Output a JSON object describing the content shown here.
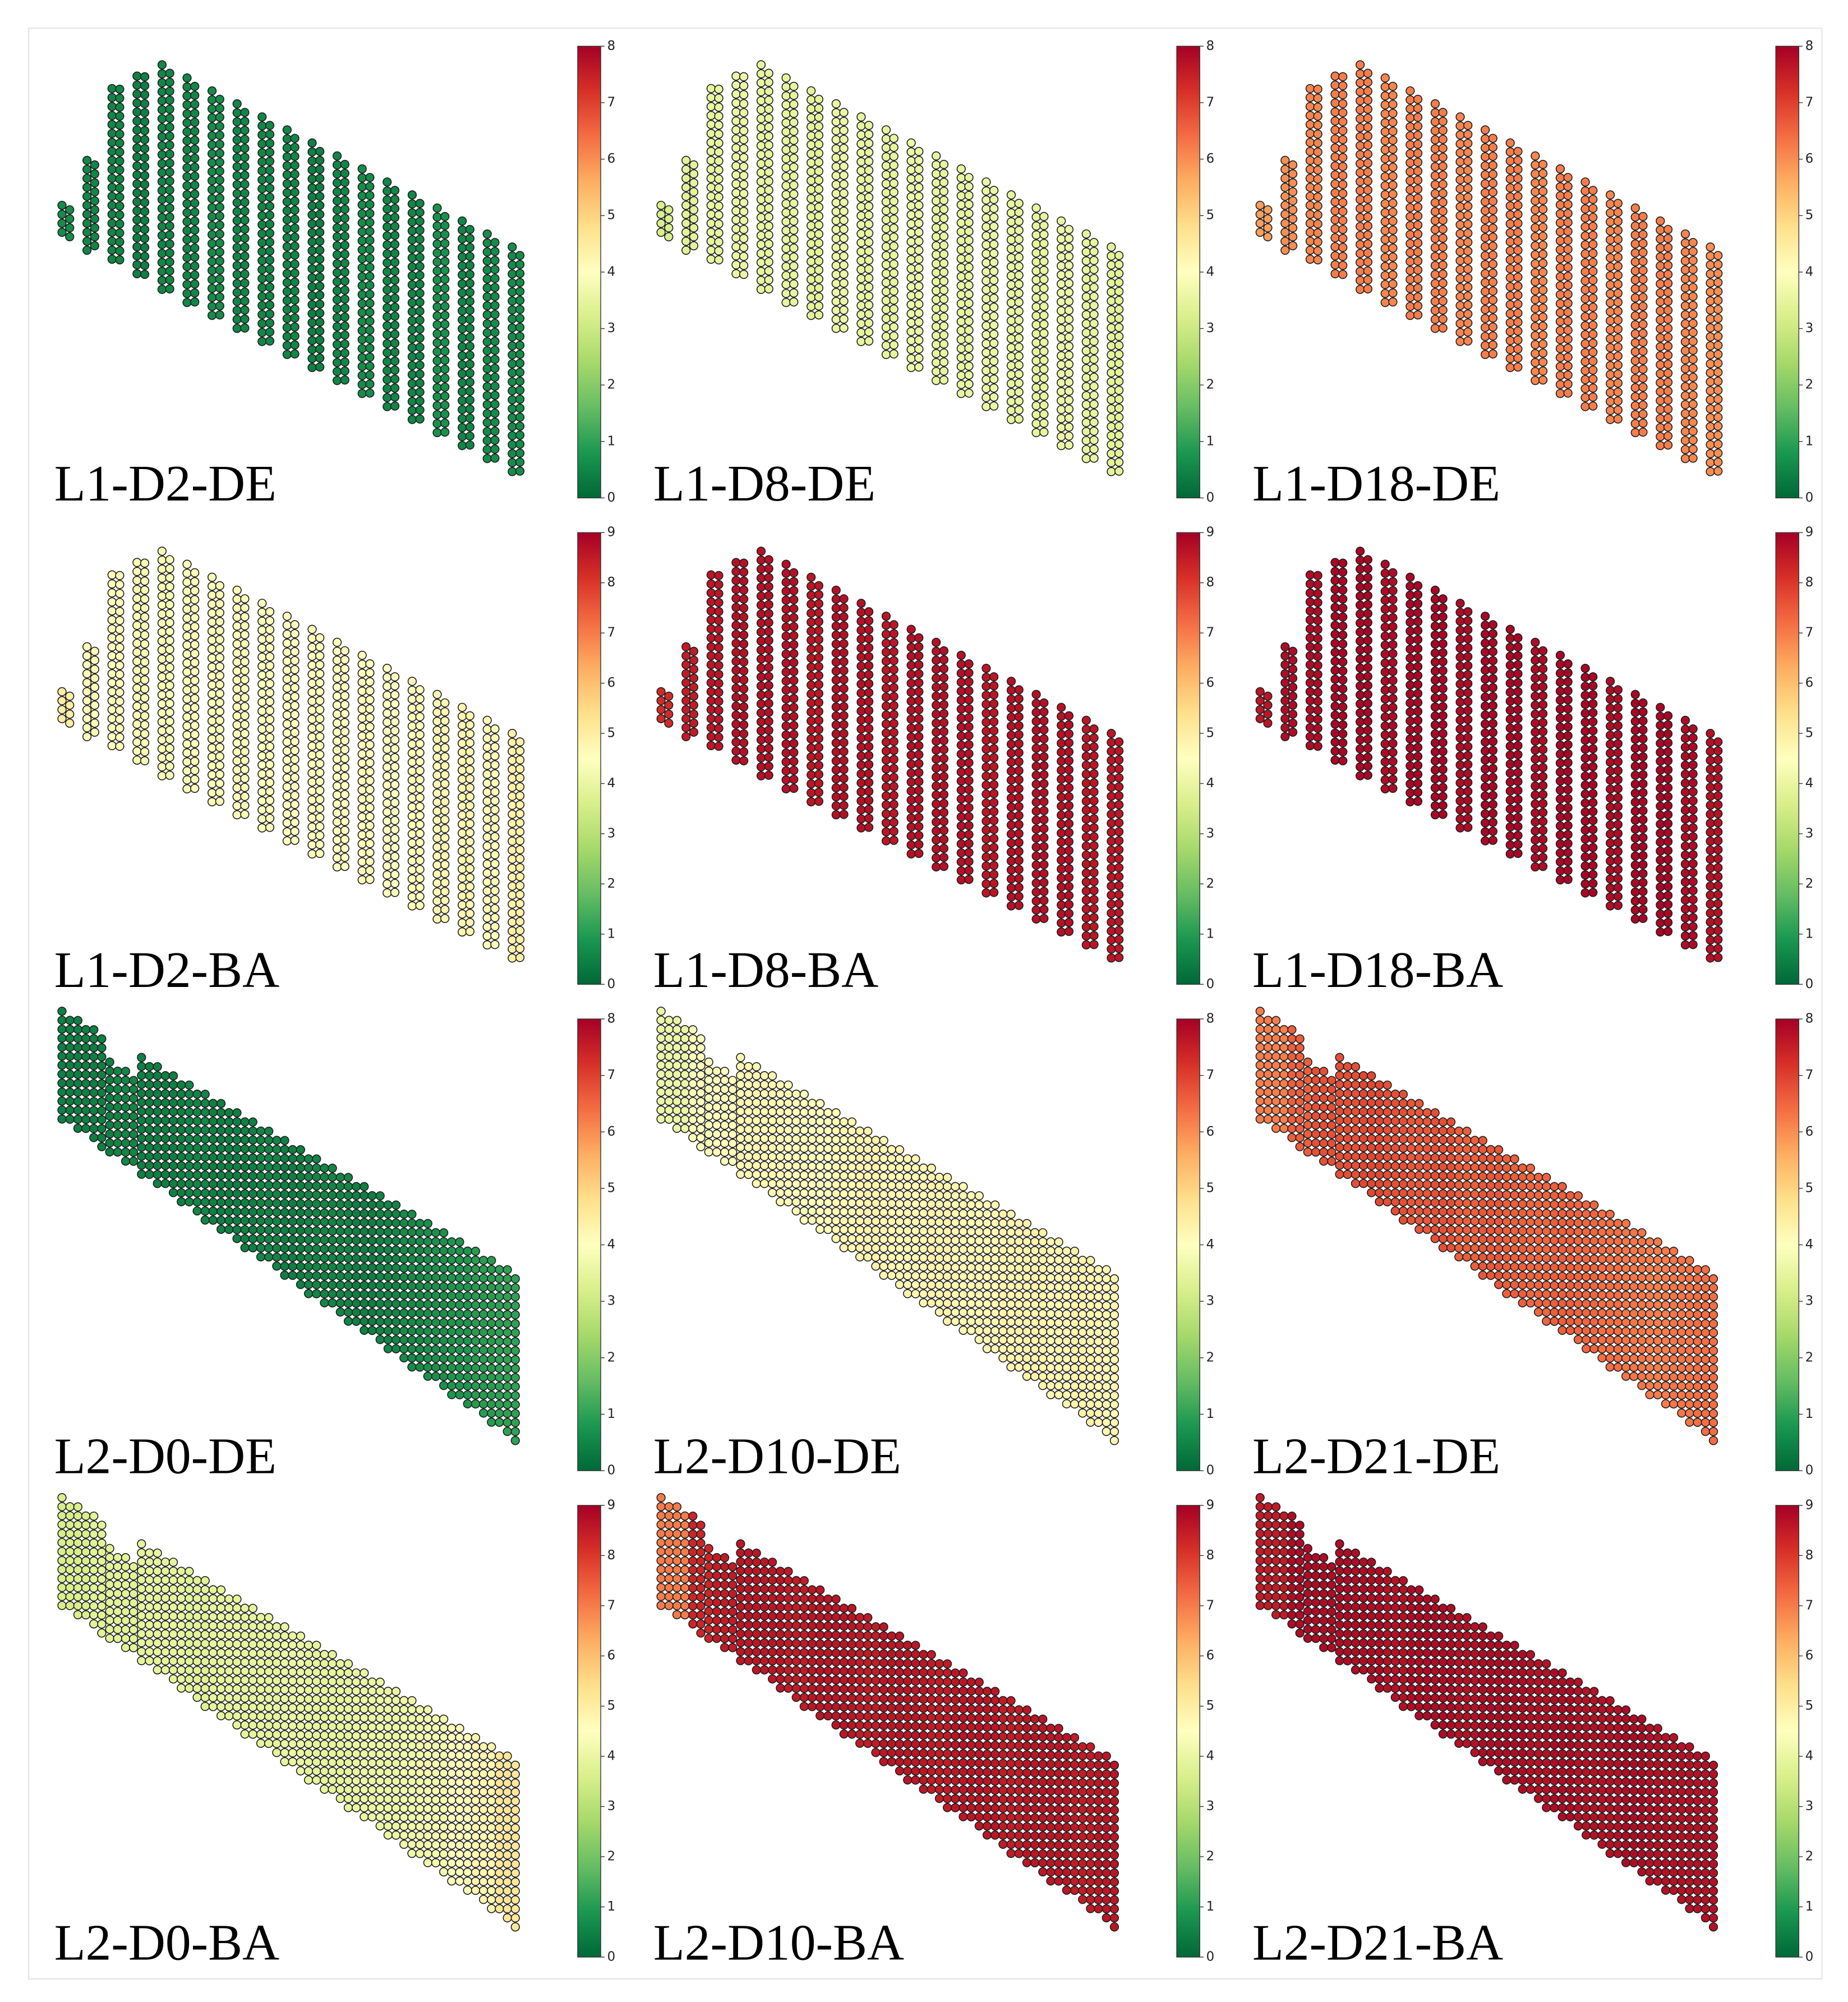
{
  "chart_data": [
    {
      "type": "scatter",
      "title": "L1-D2-DE",
      "clim": [
        0,
        8
      ],
      "cticks": [
        0,
        1,
        2,
        3,
        4,
        5,
        6,
        7,
        8
      ],
      "values": [
        0.6,
        0.5,
        0.5,
        0.4,
        0.5,
        0.5,
        0.6,
        0.5,
        0.5,
        0.5,
        0.4,
        0.5,
        0.6,
        0.5,
        0.5,
        0.7,
        0.5,
        0.6,
        0.6
      ]
    },
    {
      "type": "scatter",
      "title": "L1-D8-DE",
      "clim": [
        0,
        8
      ],
      "cticks": [
        0,
        1,
        2,
        3,
        4,
        5,
        6,
        7,
        8
      ],
      "values": [
        3.2,
        3.4,
        3.5,
        3.6,
        3.5,
        3.5,
        3.4,
        3.6,
        3.5,
        3.5,
        3.6,
        3.5,
        3.5,
        3.6,
        3.5,
        3.5,
        3.6,
        3.5,
        3.4
      ]
    },
    {
      "type": "scatter",
      "title": "L1-D18-DE",
      "clim": [
        0,
        8
      ],
      "cticks": [
        0,
        1,
        2,
        3,
        4,
        5,
        6,
        7,
        8
      ],
      "values": [
        5.8,
        6.0,
        6.1,
        6.2,
        6.2,
        6.1,
        6.2,
        6.2,
        6.1,
        6.2,
        6.2,
        6.1,
        6.2,
        6.2,
        6.1,
        6.2,
        6.2,
        6.1,
        6.0
      ]
    },
    {
      "type": "scatter",
      "title": "L1-D2-BA",
      "clim": [
        0,
        9
      ],
      "cticks": [
        0,
        1,
        2,
        3,
        4,
        5,
        6,
        7,
        8,
        9
      ],
      "values": [
        5.0,
        4.6,
        4.4,
        4.3,
        4.3,
        4.4,
        4.3,
        4.4,
        4.4,
        4.5,
        4.4,
        4.5,
        4.6,
        4.5,
        4.6,
        4.7,
        4.8,
        4.6,
        4.9
      ]
    },
    {
      "type": "scatter",
      "title": "L1-D8-BA",
      "clim": [
        0,
        9
      ],
      "cticks": [
        0,
        1,
        2,
        3,
        4,
        5,
        6,
        7,
        8,
        9
      ],
      "values": [
        8.2,
        8.5,
        8.6,
        8.7,
        8.7,
        8.7,
        8.6,
        8.7,
        8.7,
        8.6,
        8.7,
        8.7,
        8.7,
        8.6,
        8.7,
        8.7,
        8.7,
        8.6,
        8.6
      ]
    },
    {
      "type": "scatter",
      "title": "L1-D18-BA",
      "clim": [
        0,
        9
      ],
      "cticks": [
        0,
        1,
        2,
        3,
        4,
        5,
        6,
        7,
        8,
        9
      ],
      "values": [
        8.6,
        8.8,
        8.8,
        8.9,
        8.9,
        8.8,
        8.9,
        8.9,
        8.8,
        8.9,
        8.9,
        8.8,
        8.9,
        8.9,
        8.8,
        8.9,
        8.9,
        8.8,
        8.7
      ]
    },
    {
      "type": "scatter",
      "title": "L2-D0-DE",
      "clim": [
        0,
        8
      ],
      "cticks": [
        0,
        1,
        2,
        3,
        4,
        5,
        6,
        7,
        8
      ],
      "values": [
        0.4,
        0.4,
        0.5,
        0.4,
        0.4,
        0.5,
        0.4,
        0.4,
        0.5,
        0.4,
        0.5,
        0.5,
        0.4,
        0.5,
        0.6,
        0.7,
        0.8,
        0.9,
        1.0
      ]
    },
    {
      "type": "scatter",
      "title": "L2-D10-DE",
      "clim": [
        0,
        8
      ],
      "cticks": [
        0,
        1,
        2,
        3,
        4,
        5,
        6,
        7,
        8
      ],
      "values": [
        3.6,
        3.9,
        4.1,
        4.2,
        4.2,
        4.1,
        3.9,
        4.2,
        4.3,
        4.2,
        4.2,
        4.3,
        4.2,
        4.2,
        4.3,
        4.3,
        4.2,
        4.3,
        4.2
      ]
    },
    {
      "type": "scatter",
      "title": "L2-D21-DE",
      "clim": [
        0,
        8
      ],
      "cticks": [
        0,
        1,
        2,
        3,
        4,
        5,
        6,
        7,
        8
      ],
      "values": [
        6.2,
        6.6,
        6.8,
        6.8,
        6.9,
        6.8,
        6.7,
        6.8,
        6.6,
        6.7,
        6.6,
        6.5,
        6.6,
        6.5,
        6.4,
        6.3,
        6.2,
        6.3,
        6.4
      ]
    },
    {
      "type": "scatter",
      "title": "L2-D0-BA",
      "clim": [
        0,
        9
      ],
      "cticks": [
        0,
        1,
        2,
        3,
        4,
        5,
        6,
        7,
        8,
        9
      ],
      "values": [
        3.6,
        3.8,
        3.8,
        3.9,
        3.9,
        3.8,
        3.9,
        3.9,
        3.9,
        4.0,
        3.9,
        3.9,
        4.0,
        4.0,
        4.1,
        4.2,
        4.4,
        4.8,
        5.2
      ]
    },
    {
      "type": "scatter",
      "title": "L2-D10-BA",
      "clim": [
        0,
        9
      ],
      "cticks": [
        0,
        1,
        2,
        3,
        4,
        5,
        6,
        7,
        8,
        9
      ],
      "values": [
        7.0,
        8.3,
        8.5,
        8.6,
        8.6,
        8.5,
        8.6,
        8.6,
        8.5,
        8.6,
        8.6,
        8.5,
        8.6,
        8.6,
        8.5,
        8.6,
        8.6,
        8.5,
        8.6
      ]
    },
    {
      "type": "scatter",
      "title": "L2-D21-BA",
      "clim": [
        0,
        9
      ],
      "cticks": [
        0,
        1,
        2,
        3,
        4,
        5,
        6,
        7,
        8,
        9
      ],
      "values": [
        8.5,
        8.8,
        8.8,
        8.8,
        8.8,
        8.7,
        8.8,
        8.8,
        8.7,
        8.8,
        8.8,
        8.7,
        8.8,
        8.7,
        8.7,
        8.8,
        8.7,
        8.7,
        8.7
      ]
    }
  ],
  "colormap": [
    "#006837",
    "#1a9850",
    "#66bd63",
    "#a6d96a",
    "#d9ef8b",
    "#ffffbf",
    "#fee08b",
    "#fdae61",
    "#f46d43",
    "#d73027",
    "#a50026"
  ]
}
